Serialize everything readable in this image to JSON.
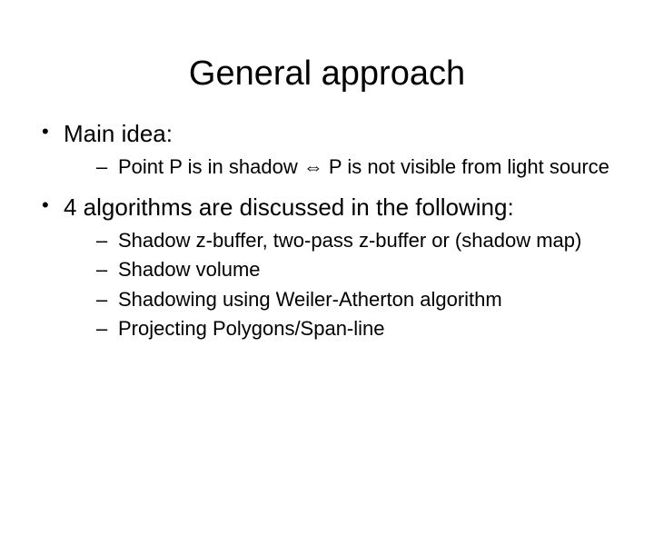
{
  "title": "General approach",
  "bullets": [
    {
      "text": "Main idea:",
      "sub": [
        "Point P is in shadow ⇔ P is not visible from light source"
      ]
    },
    {
      "text": "4 algorithms are discussed in the following:",
      "sub": [
        "Shadow z-buffer, two-pass z-buffer or (shadow map)",
        "Shadow volume",
        "Shadowing using Weiler-Atherton algorithm",
        "Projecting Polygons/Span-line"
      ]
    }
  ],
  "colors": {
    "background": "#ffffff",
    "text": "#000000"
  },
  "typography": {
    "title_fontsize": 38,
    "level1_fontsize": 26,
    "level2_fontsize": 22,
    "font_family": "Arial"
  }
}
